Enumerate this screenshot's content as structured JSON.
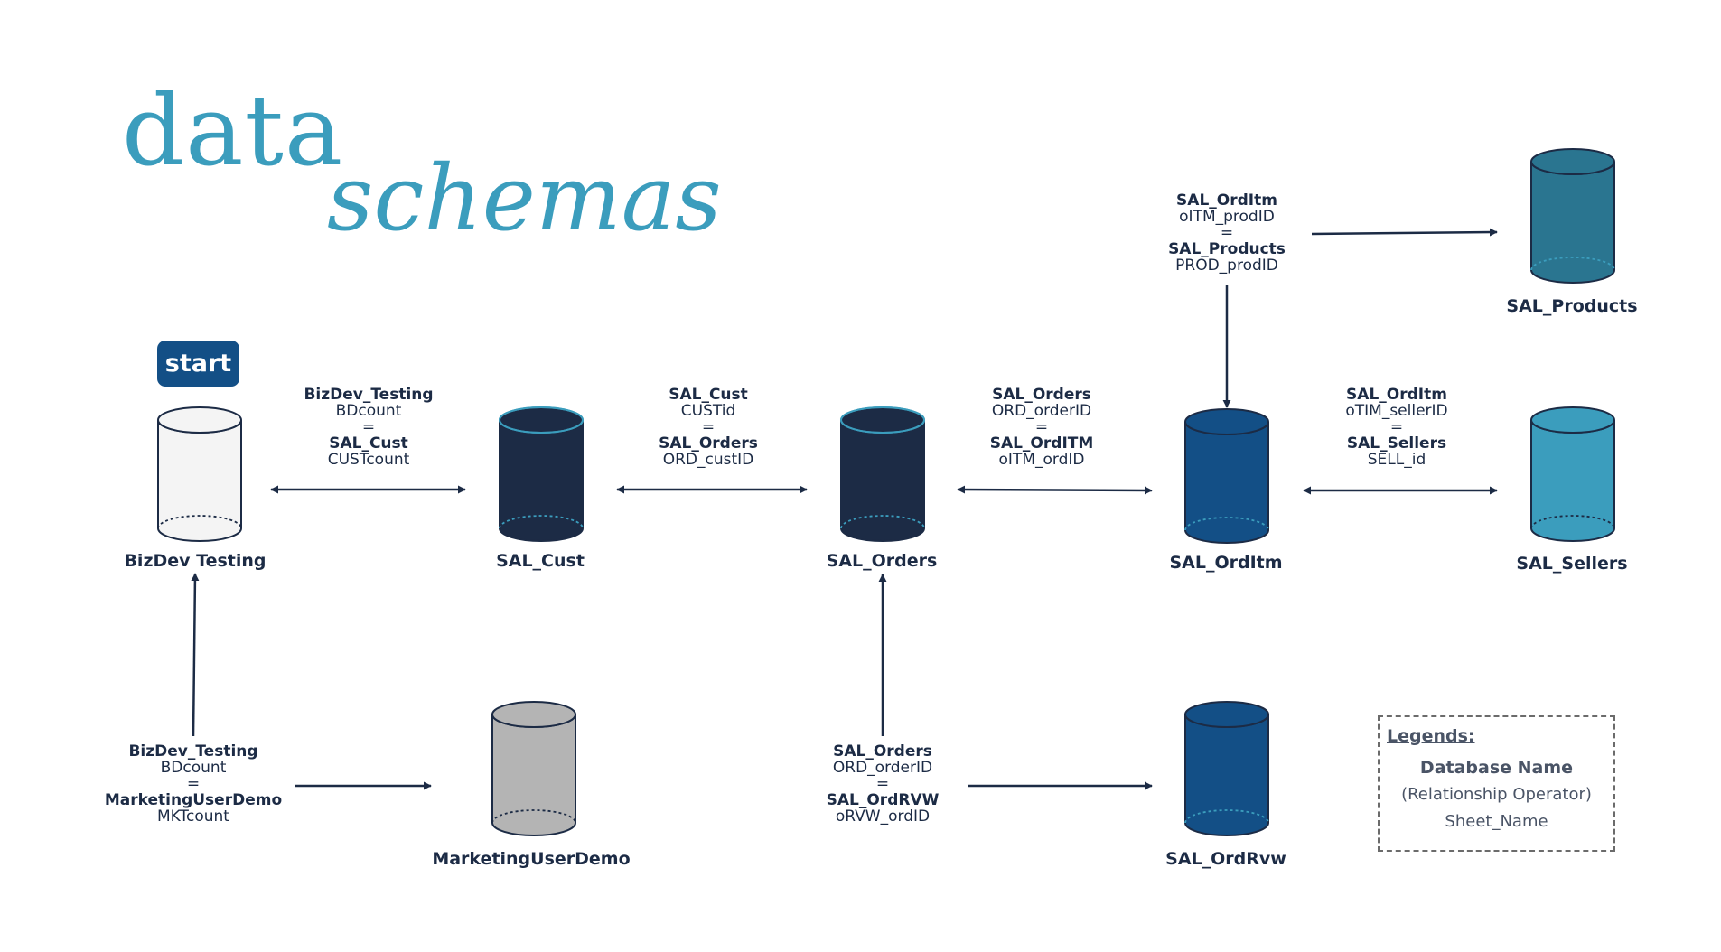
{
  "title": {
    "line1": "data",
    "line2": "schemas"
  },
  "start_label": "start",
  "colors": {
    "title": "#3b9dbd",
    "arrow": "#1c2b45",
    "db_outline": "#1c2b45",
    "db_dark_navy": "#1c2b45",
    "db_navy_blue": "#134f86",
    "db_teal_dark": "#2a7590",
    "db_teal_light": "#3b9dbd",
    "db_gray": "#b4b4b4",
    "db_white": "#f4f4f4",
    "start_badge": "#134f86"
  },
  "databases": [
    {
      "id": "bizdev",
      "name": "BizDev Testing",
      "color": "#f4f4f4"
    },
    {
      "id": "salcust",
      "name": "SAL_Cust",
      "color": "#1c2b45"
    },
    {
      "id": "salorders",
      "name": "SAL_Orders",
      "color": "#1c2b45"
    },
    {
      "id": "salorditm",
      "name": "SAL_OrdItm",
      "color": "#134f86"
    },
    {
      "id": "salsellers",
      "name": "SAL_Sellers",
      "color": "#3b9dbd"
    },
    {
      "id": "salproducts",
      "name": "SAL_Products",
      "color": "#2a7590"
    },
    {
      "id": "marketing",
      "name": "MarketingUserDemo",
      "color": "#b4b4b4"
    },
    {
      "id": "salordrvw",
      "name": "SAL_OrdRvw",
      "color": "#134f86"
    }
  ],
  "relations": [
    {
      "id": "r_bizdev_cust",
      "db1": "BizDev_Testing",
      "f1": "BDcount",
      "op": "=",
      "db2": "SAL_Cust",
      "f2": "CUSTcount"
    },
    {
      "id": "r_cust_orders",
      "db1": "SAL_Cust",
      "f1": "CUSTid",
      "op": "=",
      "db2": "SAL_Orders",
      "f2": "ORD_custID"
    },
    {
      "id": "r_orders_orditm",
      "db1": "SAL_Orders",
      "f1": "ORD_orderID",
      "op": "=",
      "db2": "SAL_OrdITM",
      "f2": "oITM_ordID"
    },
    {
      "id": "r_orditm_sellers",
      "db1": "SAL_OrdItm",
      "f1": "oTIM_sellerID",
      "op": "=",
      "db2": "SAL_Sellers",
      "f2": "SELL_id"
    },
    {
      "id": "r_orditm_products",
      "db1": "SAL_OrdItm",
      "f1": "oITM_prodID",
      "op": "=",
      "db2": "SAL_Products",
      "f2": "PROD_prodID"
    },
    {
      "id": "r_bizdev_marketing",
      "db1": "BizDev_Testing",
      "f1": "BDcount",
      "op": "=",
      "db2": "MarketingUserDemo",
      "f2": "MKTcount"
    },
    {
      "id": "r_orders_ordrvw",
      "db1": "SAL_Orders",
      "f1": "ORD_orderID",
      "op": "=",
      "db2": "SAL_OrdRVW",
      "f2": "oRVW_ordID"
    }
  ],
  "legend": {
    "title": "Legends:",
    "line1": "Database Name",
    "line2": "(Relationship Operator)",
    "line3": "Sheet_Name"
  }
}
